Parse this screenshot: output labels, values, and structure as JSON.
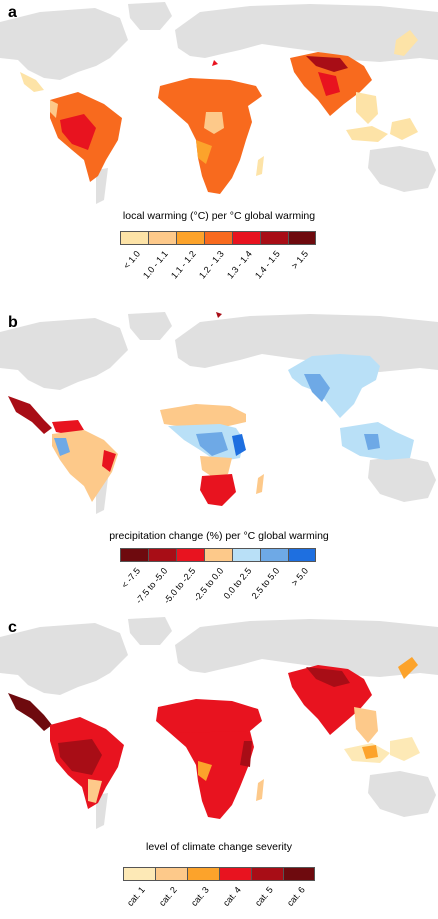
{
  "panels": [
    {
      "letter": "a",
      "legend_title": "local warming (°C) per °C global warming",
      "colors": [
        "#fde3a7",
        "#fdc98a",
        "#fca32b",
        "#f86a1e",
        "#e8131f",
        "#a80d16",
        "#6e0a0e"
      ],
      "labels": [
        "< 1.0",
        "1.0 - 1.1",
        "1.1 - 1.2",
        "1.2 - 1.3",
        "1.3 - 1.4",
        "1.4 - 1.5",
        "> 1.5"
      ]
    },
    {
      "letter": "b",
      "legend_title": "precipitation change (%) per °C global warming",
      "colors": [
        "#6e0a0e",
        "#a80d16",
        "#e8131f",
        "#fdc98a",
        "#b9e0f7",
        "#6ea9e6",
        "#1e6fe0"
      ],
      "labels": [
        "< -7.5",
        "-7.5 to -5.0",
        "-5.0 to -2.5",
        "-2.5 to 0.0",
        "0.0 to 2.5",
        "2.5 to 5.0",
        "> 5.0"
      ]
    },
    {
      "letter": "c",
      "legend_title": "level of climate change severity",
      "colors": [
        "#fde9b6",
        "#fdc98a",
        "#fca32b",
        "#e8131f",
        "#a80d16",
        "#6e0a0e"
      ],
      "labels": [
        "cat. 1",
        "cat. 2",
        "cat. 3",
        "cat. 4",
        "cat. 5",
        "cat. 6"
      ]
    }
  ]
}
